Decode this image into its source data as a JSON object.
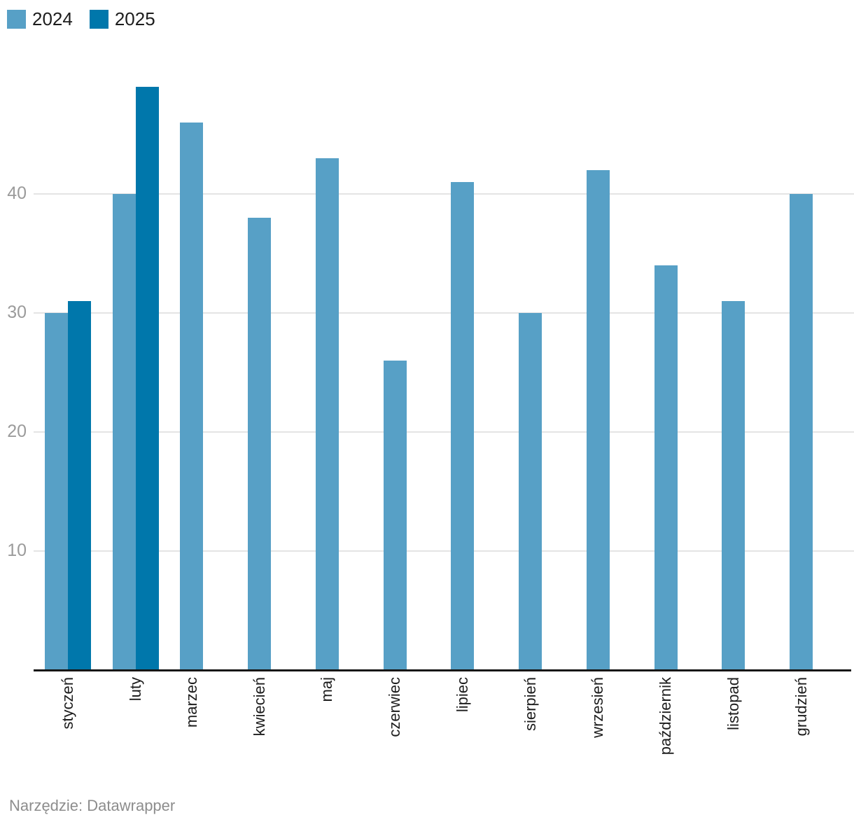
{
  "chart_data": {
    "type": "bar",
    "title": "",
    "xlabel": "",
    "ylabel": "",
    "categories": [
      "styczeń",
      "luty",
      "marzec",
      "kwiecień",
      "maj",
      "czerwiec",
      "lipiec",
      "sierpień",
      "wrzesień",
      "październik",
      "listopad",
      "grudzień"
    ],
    "series": [
      {
        "name": "2024",
        "color": "#57a0c6",
        "values": [
          30,
          40,
          46,
          38,
          43,
          26,
          41,
          30,
          42,
          34,
          31,
          40
        ]
      },
      {
        "name": "2025",
        "color": "#0077ab",
        "values": [
          31,
          49,
          null,
          null,
          null,
          null,
          null,
          null,
          null,
          null,
          null,
          null
        ]
      }
    ],
    "ylim": [
      0,
      50
    ],
    "yticks": [
      10,
      20,
      30,
      40
    ],
    "grid": true,
    "legend_position": "top-left"
  },
  "legend": {
    "items": [
      {
        "label": "2024"
      },
      {
        "label": "2025"
      }
    ]
  },
  "footer": {
    "text": "Narzędzie: Datawrapper"
  },
  "colors": {
    "background": "#ffffff",
    "series_2024": "#57a0c6",
    "series_2025": "#0077ab",
    "gridline": "#e4e4e4",
    "axis_line": "#161616",
    "ytick_label": "#9b9b9b",
    "xtick_label": "#1d1d1d",
    "footer_text": "#8d8d8d"
  }
}
